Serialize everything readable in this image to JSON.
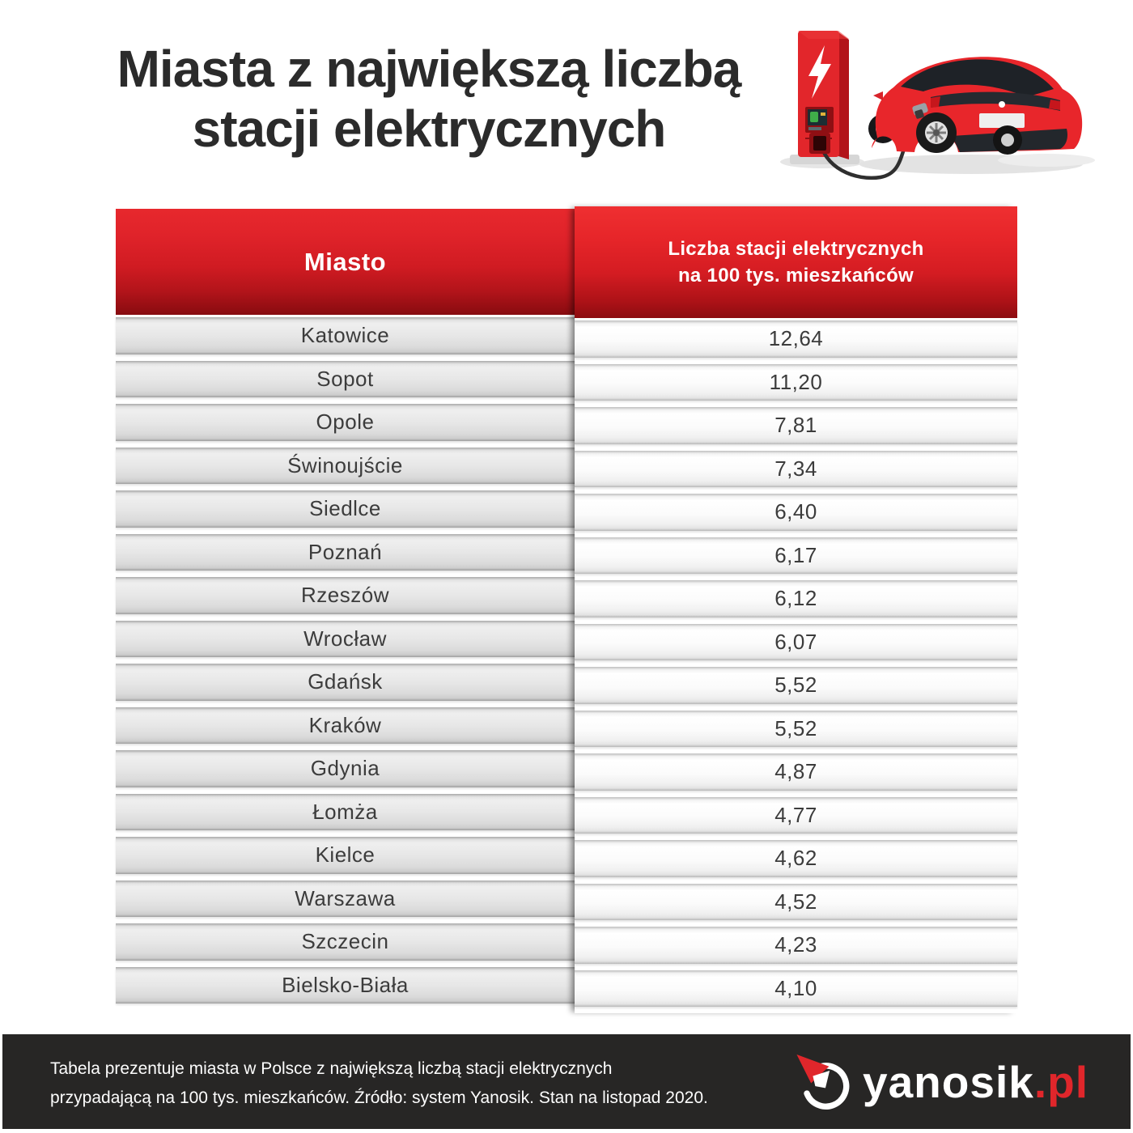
{
  "title": {
    "line1": "Miasta z największą liczbą",
    "line2": "stacji elektrycznych"
  },
  "header_illustration_icon": "ev-charging-station-and-red-car-illustration",
  "table": {
    "header": {
      "city_label": "Miasto",
      "value_label_line1": "Liczba stacji elektrycznych",
      "value_label_line2": "na 100 tys. mieszkańców"
    },
    "rows": [
      {
        "city": "Katowice",
        "value": "12,64"
      },
      {
        "city": "Sopot",
        "value": "11,20"
      },
      {
        "city": "Opole",
        "value": "7,81"
      },
      {
        "city": "Świnoujście",
        "value": "7,34"
      },
      {
        "city": "Siedlce",
        "value": "6,40"
      },
      {
        "city": "Poznań",
        "value": "6,17"
      },
      {
        "city": "Rzeszów",
        "value": "6,12"
      },
      {
        "city": "Wrocław",
        "value": "6,07"
      },
      {
        "city": "Gdańsk",
        "value": "5,52"
      },
      {
        "city": "Kraków",
        "value": "5,52"
      },
      {
        "city": "Gdynia",
        "value": "4,87"
      },
      {
        "city": "Łomża",
        "value": "4,77"
      },
      {
        "city": "Kielce",
        "value": "4,62"
      },
      {
        "city": "Warszawa",
        "value": "4,52"
      },
      {
        "city": "Szczecin",
        "value": "4,23"
      },
      {
        "city": "Bielsko-Biała",
        "value": "4,10"
      }
    ]
  },
  "chart_data": {
    "type": "table",
    "title": "Miasta z największą liczbą stacji elektrycznych",
    "columns": [
      "Miasto",
      "Liczba stacji elektrycznych na 100 tys. mieszkańców"
    ],
    "categories": [
      "Katowice",
      "Sopot",
      "Opole",
      "Świnoujście",
      "Siedlce",
      "Poznań",
      "Rzeszów",
      "Wrocław",
      "Gdańsk",
      "Kraków",
      "Gdynia",
      "Łomża",
      "Kielce",
      "Warszawa",
      "Szczecin",
      "Bielsko-Biała"
    ],
    "values": [
      12.64,
      11.2,
      7.81,
      7.34,
      6.4,
      6.17,
      6.12,
      6.07,
      5.52,
      5.52,
      4.87,
      4.77,
      4.62,
      4.52,
      4.23,
      4.1
    ]
  },
  "footer": {
    "line1": "Tabela prezentuje miasta w Polsce z największą liczbą stacji elektrycznych",
    "line2": "przypadającą na 100 tys. mieszkańców. Źródło: system Yanosik. Stan na listopad 2020.",
    "logo_text": "yanosik",
    "logo_suffix": ".pl",
    "logo_icon": "yanosik-navigation-arrow-icon"
  },
  "colors": {
    "accent_red": "#e0262b",
    "header_red_top": "#ee2d30",
    "header_red_bottom": "#8c0c10",
    "footer_background": "#272625",
    "title_text": "#2b2b2b",
    "row_text": "#3c3c3c"
  }
}
